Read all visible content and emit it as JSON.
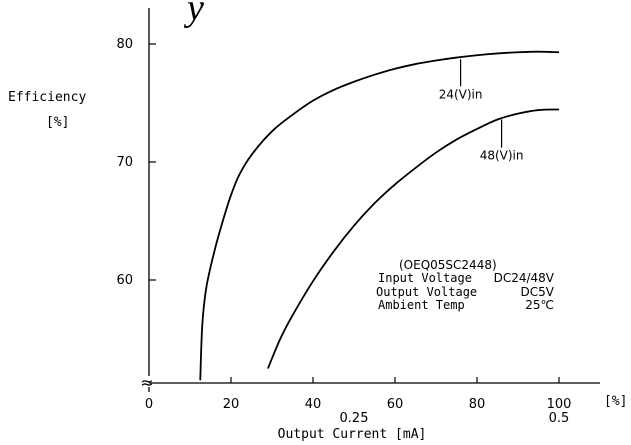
{
  "chart_data": {
    "type": "line",
    "title": "",
    "xlabel": "Output Current [mA]",
    "ylabel": "Efficiency [%]",
    "xlim": [
      0,
      110
    ],
    "ylim": [
      51.5,
      83
    ],
    "x_unit_label": "[%]",
    "x_ticks": [
      "0",
      "20",
      "40",
      "60",
      "80",
      "100"
    ],
    "x_secondary_ticks": [
      {
        "x": 50,
        "label": "0.25"
      },
      {
        "x": 100,
        "label": "0.5"
      }
    ],
    "y_ticks": [
      "60",
      "70",
      "80"
    ],
    "axis_break_symbol": "≈",
    "grid": false,
    "series": [
      {
        "name": "24(V)in",
        "x": [
          12.5,
          13,
          14,
          16,
          18,
          20,
          22,
          25,
          30,
          35,
          40,
          45,
          50,
          55,
          60,
          65,
          70,
          75,
          80,
          85,
          90,
          95,
          100
        ],
        "y": [
          51.5,
          56.2,
          59.4,
          62.5,
          65.0,
          67.2,
          68.9,
          70.6,
          72.6,
          74.0,
          75.2,
          76.1,
          76.8,
          77.4,
          77.9,
          78.3,
          78.6,
          78.85,
          79.05,
          79.2,
          79.3,
          79.35,
          79.3
        ],
        "label_anchor": {
          "x": 76,
          "y": 78.7
        },
        "label_at": {
          "x": 76,
          "y": 75.4
        }
      },
      {
        "name": "48(V)in",
        "x": [
          29,
          32,
          35,
          40,
          45,
          50,
          55,
          60,
          65,
          70,
          75,
          80,
          85,
          90,
          95,
          100
        ],
        "y": [
          52.5,
          55.0,
          57.0,
          59.9,
          62.4,
          64.6,
          66.5,
          68.1,
          69.5,
          70.8,
          71.9,
          72.8,
          73.6,
          74.1,
          74.4,
          74.45
        ],
        "label_anchor": {
          "x": 86,
          "y": 73.6
        },
        "label_at": {
          "x": 86,
          "y": 70.2
        }
      }
    ],
    "annotation": {
      "model": "(OEQ05SC2448)",
      "rows": [
        {
          "label": "Input Voltage",
          "value": "DC24/48V"
        },
        {
          "label": "Output Voltage",
          "value": "DC5V"
        },
        {
          "label": "Ambient Temp",
          "value": "25℃"
        }
      ]
    }
  },
  "colors": {
    "line": "#000000",
    "text": "#000000",
    "background": "#ffffff"
  }
}
